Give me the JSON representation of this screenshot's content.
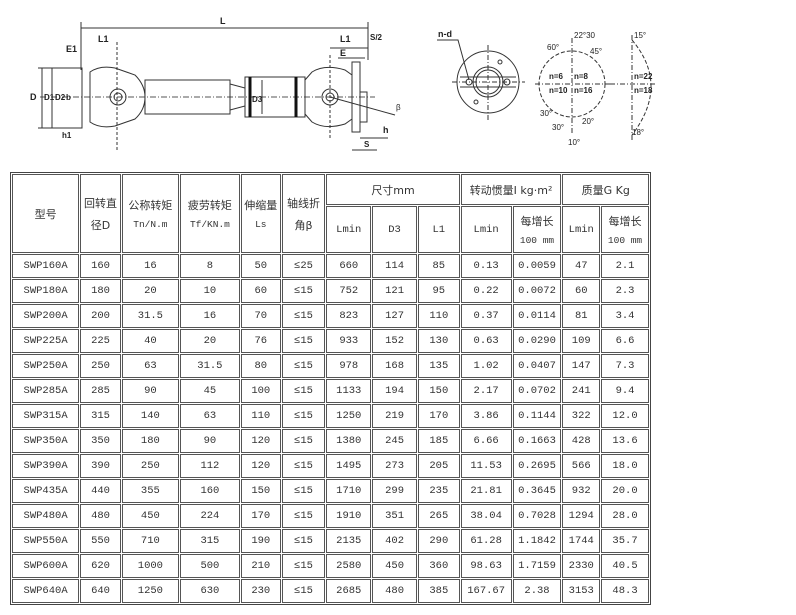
{
  "drawing": {
    "labels": {
      "L": "L",
      "L1a": "L1",
      "L1b": "L1",
      "E1": "E1",
      "E": "E",
      "s2": "S/2",
      "D": "D",
      "D1": "D1",
      "D2": "D2",
      "b": "b",
      "D3": "D3",
      "h1": "h1",
      "h": "h",
      "S": "S",
      "beta": "β",
      "nd": "n-d",
      "a2230": "22°30",
      "a60": "60°",
      "a45": "45°",
      "a30l": "30°",
      "a30b": "30°",
      "a20": "20°",
      "a10": "10°",
      "n6": "n=6",
      "n8": "n=8",
      "n10": "n=10",
      "n16": "n=16",
      "a15": "15°",
      "n22": "n=22",
      "n18": "n=18",
      "a18": "18°"
    }
  },
  "table": {
    "header": {
      "model": "型号",
      "diameter": [
        "回转直",
        "径D"
      ],
      "nominal_torque": [
        "公称转矩",
        "Tn/N.m"
      ],
      "fatigue_torque": [
        "疲劳转矩",
        "Tf/KN.m"
      ],
      "telescopic": [
        "伸缩量",
        "Ls"
      ],
      "angle": [
        "轴线折",
        "角β"
      ],
      "dimensions": "尺寸mm",
      "dim_sub": [
        "Lmin",
        "D3",
        "L1"
      ],
      "inertia": "转动惯量I kg·m²",
      "inertia_sub": [
        "Lmin",
        "每增长",
        "100 mm"
      ],
      "mass": "质量G Kg",
      "mass_sub": [
        "Lmin",
        "每增长",
        "100 mm"
      ]
    },
    "rows": [
      [
        "SWP160A",
        "160",
        "16",
        "8",
        "50",
        "≤25",
        "660",
        "114",
        "85",
        "0.13",
        "0.0059",
        "47",
        "2.1"
      ],
      [
        "SWP180A",
        "180",
        "20",
        "10",
        "60",
        "≤15",
        "752",
        "121",
        "95",
        "0.22",
        "0.0072",
        "60",
        "2.3"
      ],
      [
        "SWP200A",
        "200",
        "31.5",
        "16",
        "70",
        "≤15",
        "823",
        "127",
        "110",
        "0.37",
        "0.0114",
        "81",
        "3.4"
      ],
      [
        "SWP225A",
        "225",
        "40",
        "20",
        "76",
        "≤15",
        "933",
        "152",
        "130",
        "0.63",
        "0.0290",
        "109",
        "6.6"
      ],
      [
        "SWP250A",
        "250",
        "63",
        "31.5",
        "80",
        "≤15",
        "978",
        "168",
        "135",
        "1.02",
        "0.0407",
        "147",
        "7.3"
      ],
      [
        "SWP285A",
        "285",
        "90",
        "45",
        "100",
        "≤15",
        "1133",
        "194",
        "150",
        "2.17",
        "0.0702",
        "241",
        "9.4"
      ],
      [
        "SWP315A",
        "315",
        "140",
        "63",
        "110",
        "≤15",
        "1250",
        "219",
        "170",
        "3.86",
        "0.1144",
        "322",
        "12.0"
      ],
      [
        "SWP350A",
        "350",
        "180",
        "90",
        "120",
        "≤15",
        "1380",
        "245",
        "185",
        "6.66",
        "0.1663",
        "428",
        "13.6"
      ],
      [
        "SWP390A",
        "390",
        "250",
        "112",
        "120",
        "≤15",
        "1495",
        "273",
        "205",
        "11.53",
        "0.2695",
        "566",
        "18.0"
      ],
      [
        "SWP435A",
        "440",
        "355",
        "160",
        "150",
        "≤15",
        "1710",
        "299",
        "235",
        "21.81",
        "0.3645",
        "932",
        "20.0"
      ],
      [
        "SWP480A",
        "480",
        "450",
        "224",
        "170",
        "≤15",
        "1910",
        "351",
        "265",
        "38.04",
        "0.7028",
        "1294",
        "28.0"
      ],
      [
        "SWP550A",
        "550",
        "710",
        "315",
        "190",
        "≤15",
        "2135",
        "402",
        "290",
        "61.28",
        "1.1842",
        "1744",
        "35.7"
      ],
      [
        "SWP600A",
        "620",
        "1000",
        "500",
        "210",
        "≤15",
        "2580",
        "450",
        "360",
        "98.63",
        "1.7159",
        "2330",
        "40.5"
      ],
      [
        "SWP640A",
        "640",
        "1250",
        "630",
        "230",
        "≤15",
        "2685",
        "480",
        "385",
        "167.67",
        "2.38",
        "3153",
        "48.3"
      ]
    ]
  }
}
